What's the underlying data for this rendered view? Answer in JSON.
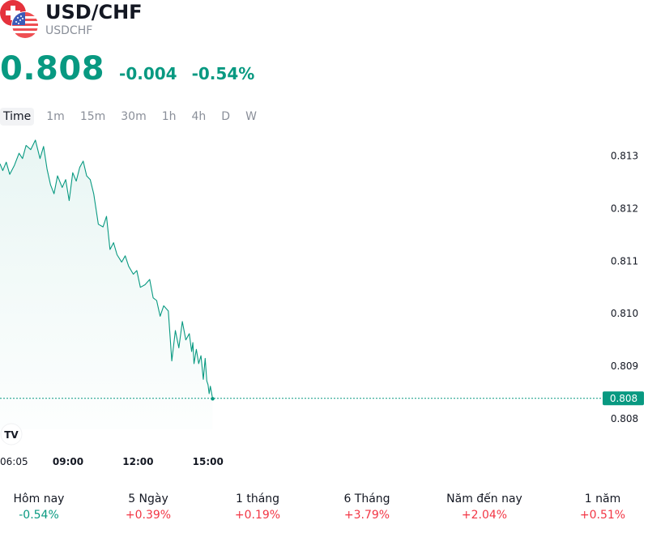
{
  "header": {
    "title": "USD/CHF",
    "subtitle": "USDCHF",
    "icons": [
      "swiss-flag-icon",
      "us-flag-icon"
    ]
  },
  "quote": {
    "price": "0.808",
    "change": "-0.004",
    "change_percent": "-0.54%",
    "color": "#089981"
  },
  "timeframes": [
    {
      "label": "Time",
      "active": true
    },
    {
      "label": "1m",
      "active": false
    },
    {
      "label": "15m",
      "active": false
    },
    {
      "label": "30m",
      "active": false
    },
    {
      "label": "1h",
      "active": false
    },
    {
      "label": "4h",
      "active": false
    },
    {
      "label": "D",
      "active": false
    },
    {
      "label": "W",
      "active": false
    }
  ],
  "chart_data": {
    "type": "area",
    "line_color": "#089981",
    "y_ticks": [
      "0.813",
      "0.812",
      "0.811",
      "0.810",
      "0.809",
      "0.808"
    ],
    "y_tick_values": [
      0.813,
      0.812,
      0.811,
      0.81,
      0.809,
      0.808
    ],
    "ylim": [
      0.8078,
      0.8135
    ],
    "x_ticks": [
      "06:05",
      "09:00",
      "12:00",
      "15:00"
    ],
    "x_tick_hours": [
      6.083,
      9.0,
      12.0,
      15.0
    ],
    "xlim": [
      6.083,
      31.85
    ],
    "last_price_label": "0.808",
    "last_price_value": 0.80839,
    "series": [
      {
        "x": [
          6.083,
          6.2,
          6.35,
          6.5,
          6.7,
          6.9,
          7.05,
          7.2,
          7.4,
          7.6,
          7.8,
          7.95,
          8.1,
          8.25,
          8.4,
          8.55,
          8.75,
          8.9,
          9.05,
          9.2,
          9.35,
          9.5,
          9.65,
          9.8,
          9.95,
          10.1,
          10.3,
          10.5,
          10.65,
          10.8,
          10.95,
          11.1,
          11.3,
          11.45,
          11.6,
          11.8,
          11.95,
          12.1,
          12.3,
          12.5,
          12.65,
          12.8,
          12.95,
          13.1,
          13.3,
          13.45,
          13.6,
          13.75,
          13.9,
          14.05,
          14.2,
          14.3,
          14.35,
          14.4,
          14.5,
          14.6,
          14.7,
          14.8,
          14.88,
          14.95,
          15.0,
          15.05,
          15.1,
          15.2
        ],
        "y": [
          0.81285,
          0.81272,
          0.81288,
          0.81265,
          0.81282,
          0.81305,
          0.81295,
          0.8132,
          0.81312,
          0.8133,
          0.81295,
          0.81318,
          0.81275,
          0.81245,
          0.81228,
          0.81262,
          0.8124,
          0.81255,
          0.81215,
          0.81268,
          0.81252,
          0.81278,
          0.8129,
          0.81262,
          0.81255,
          0.81228,
          0.8117,
          0.81165,
          0.81185,
          0.81122,
          0.81135,
          0.81112,
          0.81098,
          0.8111,
          0.8109,
          0.81075,
          0.81082,
          0.8105,
          0.81055,
          0.81065,
          0.8103,
          0.81025,
          0.80995,
          0.81015,
          0.81005,
          0.8091,
          0.80968,
          0.80935,
          0.80985,
          0.8095,
          0.80962,
          0.80928,
          0.80945,
          0.80905,
          0.80932,
          0.80905,
          0.8092,
          0.80875,
          0.80915,
          0.80872,
          0.80865,
          0.80848,
          0.80862,
          0.80838
        ]
      }
    ]
  },
  "performance": [
    {
      "label": "Hôm nay",
      "value": "-0.54%",
      "color": "#089981"
    },
    {
      "label": "5 Ngày",
      "value": "+0.39%",
      "color": "#f23645"
    },
    {
      "label": "1 tháng",
      "value": "+0.19%",
      "color": "#f23645"
    },
    {
      "label": "6 Tháng",
      "value": "+3.79%",
      "color": "#f23645"
    },
    {
      "label": "Năm đến nay",
      "value": "+2.04%",
      "color": "#f23645"
    },
    {
      "label": "1 năm",
      "value": "+0.51%",
      "color": "#f23645"
    }
  ]
}
